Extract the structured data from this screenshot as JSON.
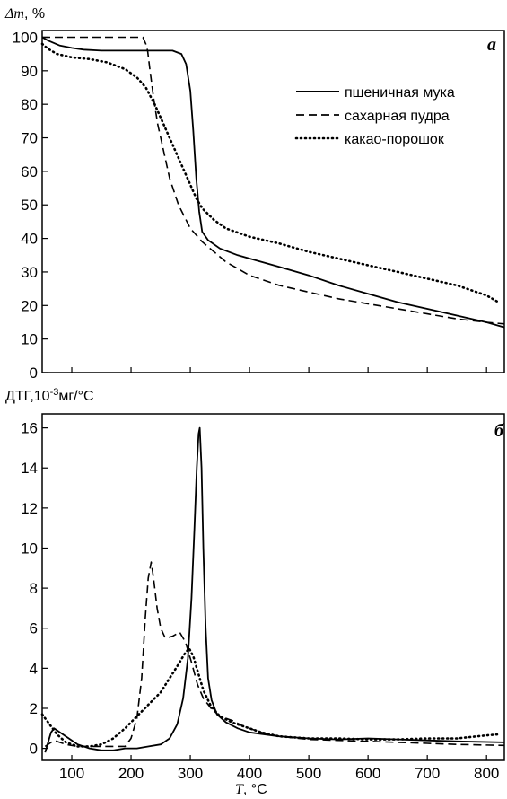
{
  "chart_data": [
    {
      "type": "line",
      "panel_label": "a",
      "ylabel_symbol": "Δm",
      "ylabel_unit": ", %",
      "xlim": [
        50,
        830
      ],
      "ylim": [
        0,
        102
      ],
      "yticks": [
        0,
        10,
        20,
        30,
        40,
        50,
        60,
        70,
        80,
        90,
        100
      ],
      "xticks": [
        100,
        200,
        300,
        400,
        500,
        600,
        700,
        800
      ],
      "legend_position": "top-right",
      "series": [
        {
          "name": "пшеничная мука",
          "style": "solid",
          "points": [
            [
              50,
              100
            ],
            [
              60,
              99
            ],
            [
              80,
              97.5
            ],
            [
              100,
              96.8
            ],
            [
              120,
              96.3
            ],
            [
              150,
              96
            ],
            [
              200,
              96
            ],
            [
              250,
              96
            ],
            [
              270,
              96
            ],
            [
              285,
              95
            ],
            [
              293,
              92
            ],
            [
              300,
              84
            ],
            [
              305,
              72
            ],
            [
              310,
              58
            ],
            [
              315,
              48
            ],
            [
              320,
              42
            ],
            [
              330,
              39.5
            ],
            [
              350,
              37
            ],
            [
              380,
              35
            ],
            [
              400,
              34
            ],
            [
              450,
              31.5
            ],
            [
              500,
              29
            ],
            [
              550,
              26
            ],
            [
              600,
              23.5
            ],
            [
              650,
              21
            ],
            [
              700,
              19
            ],
            [
              750,
              17
            ],
            [
              800,
              15
            ],
            [
              830,
              13.5
            ]
          ]
        },
        {
          "name": "сахарная пудра",
          "style": "dashed",
          "points": [
            [
              50,
              100
            ],
            [
              60,
              100
            ],
            [
              100,
              100
            ],
            [
              150,
              100
            ],
            [
              200,
              100
            ],
            [
              220,
              100
            ],
            [
              225,
              98
            ],
            [
              228,
              96
            ],
            [
              232,
              90
            ],
            [
              238,
              82
            ],
            [
              245,
              74
            ],
            [
              255,
              66
            ],
            [
              265,
              58
            ],
            [
              280,
              50
            ],
            [
              300,
              43
            ],
            [
              320,
              39
            ],
            [
              340,
              36
            ],
            [
              360,
              33
            ],
            [
              400,
              29
            ],
            [
              450,
              26
            ],
            [
              500,
              24
            ],
            [
              550,
              22
            ],
            [
              600,
              20.5
            ],
            [
              650,
              19
            ],
            [
              700,
              17.5
            ],
            [
              750,
              16
            ],
            [
              800,
              15
            ],
            [
              830,
              14.5
            ]
          ]
        },
        {
          "name": "какао-порошок",
          "style": "dotted",
          "points": [
            [
              50,
              98
            ],
            [
              60,
              96.5
            ],
            [
              75,
              95
            ],
            [
              100,
              94
            ],
            [
              130,
              93.5
            ],
            [
              160,
              92.5
            ],
            [
              190,
              90.5
            ],
            [
              210,
              88
            ],
            [
              225,
              85
            ],
            [
              240,
              80
            ],
            [
              255,
              74
            ],
            [
              270,
              68
            ],
            [
              285,
              62
            ],
            [
              300,
              56
            ],
            [
              310,
              52
            ],
            [
              320,
              49
            ],
            [
              340,
              45.5
            ],
            [
              360,
              43
            ],
            [
              400,
              40.5
            ],
            [
              450,
              38.5
            ],
            [
              500,
              36
            ],
            [
              550,
              34
            ],
            [
              600,
              32
            ],
            [
              650,
              30
            ],
            [
              700,
              28
            ],
            [
              750,
              26
            ],
            [
              800,
              23
            ],
            [
              820,
              21
            ]
          ]
        }
      ]
    },
    {
      "type": "line",
      "panel_label": "б",
      "ylabel_prefix": "ДТГ,10",
      "ylabel_exponent": "-3",
      "ylabel_unit": "мг/°С",
      "xlabel_symbol": "T",
      "xlabel_unit": ", °С",
      "xlim": [
        50,
        830
      ],
      "ylim": [
        -0.6,
        16.7
      ],
      "yticks": [
        0,
        2,
        4,
        6,
        8,
        10,
        12,
        14,
        16
      ],
      "xticks": [
        100,
        200,
        300,
        400,
        500,
        600,
        700,
        800
      ],
      "series": [
        {
          "name": "пшеничная мука",
          "style": "solid",
          "points": [
            [
              55,
              -0.2
            ],
            [
              60,
              0.3
            ],
            [
              65,
              0.8
            ],
            [
              70,
              1.0
            ],
            [
              80,
              0.8
            ],
            [
              95,
              0.5
            ],
            [
              110,
              0.2
            ],
            [
              130,
              0
            ],
            [
              150,
              -0.1
            ],
            [
              170,
              -0.1
            ],
            [
              190,
              0
            ],
            [
              210,
              0
            ],
            [
              230,
              0.1
            ],
            [
              250,
              0.2
            ],
            [
              265,
              0.5
            ],
            [
              278,
              1.2
            ],
            [
              288,
              2.5
            ],
            [
              296,
              4.5
            ],
            [
              302,
              7.5
            ],
            [
              307,
              11
            ],
            [
              311,
              14
            ],
            [
              314,
              15.7
            ],
            [
              316,
              16
            ],
            [
              319,
              14
            ],
            [
              322,
              10
            ],
            [
              326,
              6
            ],
            [
              330,
              3.5
            ],
            [
              336,
              2.4
            ],
            [
              345,
              1.7
            ],
            [
              360,
              1.3
            ],
            [
              380,
              1.0
            ],
            [
              400,
              0.8
            ],
            [
              450,
              0.6
            ],
            [
              500,
              0.5
            ],
            [
              550,
              0.45
            ],
            [
              600,
              0.5
            ],
            [
              650,
              0.45
            ],
            [
              700,
              0.4
            ],
            [
              750,
              0.35
            ],
            [
              830,
              0.3
            ]
          ]
        },
        {
          "name": "сахарная пудра",
          "style": "dashed",
          "points": [
            [
              55,
              0.1
            ],
            [
              70,
              0.4
            ],
            [
              90,
              0.2
            ],
            [
              110,
              0.1
            ],
            [
              150,
              0.1
            ],
            [
              190,
              0.1
            ],
            [
              200,
              0.5
            ],
            [
              210,
              1.5
            ],
            [
              218,
              3.5
            ],
            [
              224,
              6.5
            ],
            [
              229,
              8.5
            ],
            [
              234,
              9.3
            ],
            [
              238,
              8.5
            ],
            [
              244,
              7
            ],
            [
              250,
              6
            ],
            [
              258,
              5.5
            ],
            [
              270,
              5.6
            ],
            [
              282,
              5.8
            ],
            [
              292,
              5.3
            ],
            [
              302,
              4.3
            ],
            [
              312,
              3.2
            ],
            [
              322,
              2.5
            ],
            [
              335,
              2.0
            ],
            [
              350,
              1.6
            ],
            [
              370,
              1.4
            ],
            [
              390,
              1.1
            ],
            [
              420,
              0.8
            ],
            [
              450,
              0.6
            ],
            [
              500,
              0.45
            ],
            [
              550,
              0.4
            ],
            [
              600,
              0.35
            ],
            [
              650,
              0.3
            ],
            [
              700,
              0.25
            ],
            [
              750,
              0.2
            ],
            [
              830,
              0.15
            ]
          ]
        },
        {
          "name": "какао-порошок",
          "style": "dotted",
          "points": [
            [
              50,
              1.7
            ],
            [
              60,
              1.3
            ],
            [
              75,
              0.7
            ],
            [
              90,
              0.3
            ],
            [
              110,
              0.1
            ],
            [
              130,
              0.1
            ],
            [
              150,
              0.2
            ],
            [
              170,
              0.5
            ],
            [
              190,
              1.0
            ],
            [
              210,
              1.6
            ],
            [
              230,
              2.2
            ],
            [
              250,
              2.8
            ],
            [
              265,
              3.5
            ],
            [
              280,
              4.2
            ],
            [
              290,
              4.7
            ],
            [
              298,
              5.0
            ],
            [
              305,
              4.6
            ],
            [
              313,
              3.8
            ],
            [
              322,
              2.9
            ],
            [
              335,
              2.1
            ],
            [
              350,
              1.6
            ],
            [
              370,
              1.3
            ],
            [
              390,
              1.1
            ],
            [
              420,
              0.8
            ],
            [
              450,
              0.6
            ],
            [
              500,
              0.5
            ],
            [
              550,
              0.5
            ],
            [
              600,
              0.45
            ],
            [
              650,
              0.45
            ],
            [
              700,
              0.5
            ],
            [
              750,
              0.5
            ],
            [
              800,
              0.65
            ],
            [
              820,
              0.7
            ]
          ]
        }
      ]
    }
  ]
}
